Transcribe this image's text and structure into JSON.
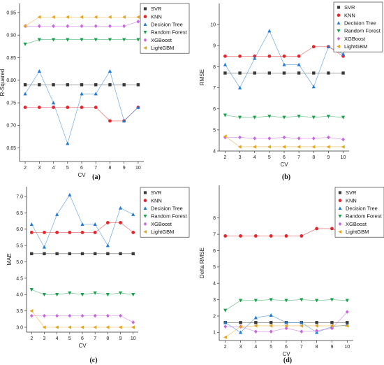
{
  "figure": {
    "captions": [
      "(a)",
      "(b)",
      "(c)",
      "(d)"
    ]
  },
  "series_styles": [
    {
      "name": "SVR",
      "color": "#3a3a3a",
      "marker": "square"
    },
    {
      "name": "KNN",
      "color": "#e8242a",
      "marker": "circle"
    },
    {
      "name": "Decision Tree",
      "color": "#1f7bd6",
      "marker": "triangle-up"
    },
    {
      "name": "Random Forest",
      "color": "#18a04a",
      "marker": "triangle-down"
    },
    {
      "name": "XGBoost",
      "color": "#c966e0",
      "marker": "diamond"
    },
    {
      "name": "LightGBM",
      "color": "#e8a31a",
      "marker": "triangle-left"
    }
  ],
  "chart_data": [
    {
      "type": "line",
      "caption": "(a)",
      "xlabel": "CV",
      "ylabel": "R-Squared",
      "x": [
        2,
        3,
        4,
        5,
        6,
        7,
        8,
        9,
        10
      ],
      "ylim": [
        0.62,
        0.97
      ],
      "yticks": [
        0.65,
        0.7,
        0.75,
        0.8,
        0.85,
        0.9,
        0.95
      ],
      "ytick_labels": [
        "0.65",
        "0.70",
        "0.75",
        "0.80",
        "0.85",
        "0.90",
        "0.95"
      ],
      "legend": "top-right",
      "series": [
        {
          "name": "SVR",
          "values": [
            0.79,
            0.79,
            0.79,
            0.79,
            0.79,
            0.79,
            0.79,
            0.79,
            0.79
          ]
        },
        {
          "name": "KNN",
          "values": [
            0.74,
            0.74,
            0.74,
            0.74,
            0.74,
            0.74,
            0.71,
            0.71,
            0.74
          ]
        },
        {
          "name": "Decision Tree",
          "values": [
            0.77,
            0.82,
            0.75,
            0.66,
            0.77,
            0.77,
            0.82,
            0.71,
            0.74
          ]
        },
        {
          "name": "Random Forest",
          "values": [
            0.88,
            0.89,
            0.89,
            0.89,
            0.89,
            0.89,
            0.89,
            0.89,
            0.89
          ]
        },
        {
          "name": "XGBoost",
          "values": [
            0.92,
            0.92,
            0.92,
            0.92,
            0.92,
            0.92,
            0.92,
            0.92,
            0.93
          ]
        },
        {
          "name": "LightGBM",
          "values": [
            0.92,
            0.94,
            0.94,
            0.94,
            0.94,
            0.94,
            0.94,
            0.94,
            0.94
          ]
        }
      ]
    },
    {
      "type": "line",
      "caption": "(b)",
      "xlabel": "CV",
      "ylabel": "RMSE",
      "x": [
        2,
        3,
        4,
        5,
        6,
        7,
        8,
        9,
        10
      ],
      "ylim": [
        4,
        11
      ],
      "yticks": [
        4,
        5,
        6,
        7,
        8,
        9,
        10
      ],
      "ytick_labels": [
        "4",
        "5",
        "6",
        "7",
        "8",
        "9",
        "10"
      ],
      "legend": "top-right",
      "series": [
        {
          "name": "SVR",
          "values": [
            7.7,
            7.7,
            7.7,
            7.7,
            7.7,
            7.7,
            7.7,
            7.7,
            7.7
          ]
        },
        {
          "name": "KNN",
          "values": [
            8.5,
            8.5,
            8.5,
            8.5,
            8.5,
            8.5,
            8.95,
            8.95,
            8.5
          ]
        },
        {
          "name": "Decision Tree",
          "values": [
            8.1,
            7.0,
            8.4,
            9.7,
            8.1,
            8.1,
            7.05,
            8.95,
            8.6
          ]
        },
        {
          "name": "Random Forest",
          "values": [
            5.7,
            5.6,
            5.6,
            5.65,
            5.6,
            5.65,
            5.6,
            5.65,
            5.6
          ]
        },
        {
          "name": "XGBoost",
          "values": [
            4.65,
            4.65,
            4.6,
            4.6,
            4.65,
            4.6,
            4.6,
            4.65,
            4.55
          ]
        },
        {
          "name": "LightGBM",
          "values": [
            4.7,
            4.2,
            4.2,
            4.2,
            4.2,
            4.2,
            4.2,
            4.2,
            4.2
          ]
        }
      ]
    },
    {
      "type": "line",
      "caption": "(c)",
      "xlabel": "CV",
      "ylabel": "MAE",
      "x": [
        2,
        3,
        4,
        5,
        6,
        7,
        8,
        9,
        10
      ],
      "ylim": [
        2.85,
        7.3
      ],
      "yticks": [
        3.0,
        3.5,
        4.0,
        4.5,
        5.0,
        5.5,
        6.0,
        6.5,
        7.0
      ],
      "ytick_labels": [
        "3.0",
        "3.5",
        "4.0",
        "4.5",
        "5.0",
        "5.5",
        "6.0",
        "6.5",
        "7.0"
      ],
      "legend": "top-right",
      "series": [
        {
          "name": "SVR",
          "values": [
            5.25,
            5.25,
            5.25,
            5.25,
            5.25,
            5.25,
            5.25,
            5.25,
            5.25
          ]
        },
        {
          "name": "KNN",
          "values": [
            5.9,
            5.9,
            5.9,
            5.9,
            5.9,
            5.9,
            6.2,
            6.2,
            5.9
          ]
        },
        {
          "name": "Decision Tree",
          "values": [
            6.15,
            5.45,
            6.45,
            7.05,
            6.15,
            6.15,
            5.5,
            6.65,
            6.45
          ]
        },
        {
          "name": "Random Forest",
          "values": [
            4.15,
            4.0,
            4.0,
            4.05,
            4.0,
            4.05,
            4.0,
            4.05,
            4.0
          ]
        },
        {
          "name": "XGBoost",
          "values": [
            3.35,
            3.35,
            3.35,
            3.35,
            3.35,
            3.35,
            3.35,
            3.35,
            3.15
          ]
        },
        {
          "name": "LightGBM",
          "values": [
            3.5,
            3.0,
            3.0,
            3.0,
            3.0,
            3.0,
            3.0,
            3.0,
            3.0
          ]
        }
      ]
    },
    {
      "type": "line",
      "caption": "(d)",
      "xlabel": "CV",
      "ylabel": "Delta RMSE",
      "x": [
        2,
        3,
        4,
        5,
        6,
        7,
        8,
        9,
        10
      ],
      "ylim": [
        0.5,
        10
      ],
      "yticks": [
        1,
        2,
        3,
        4,
        5,
        6,
        7,
        8
      ],
      "ytick_labels": [
        "1",
        "2",
        "3",
        "4",
        "5",
        "6",
        "7",
        "8"
      ],
      "legend": "top-right",
      "series": [
        {
          "name": "SVR",
          "values": [
            1.6,
            1.6,
            1.6,
            1.6,
            1.6,
            1.6,
            1.6,
            1.6,
            1.6
          ]
        },
        {
          "name": "KNN",
          "values": [
            6.9,
            6.9,
            6.9,
            6.9,
            6.9,
            6.9,
            7.35,
            7.35,
            6.9
          ]
        },
        {
          "name": "Decision Tree",
          "values": [
            1.6,
            1.0,
            1.9,
            2.05,
            1.6,
            1.6,
            1.0,
            1.35,
            1.45
          ]
        },
        {
          "name": "Random Forest",
          "values": [
            2.35,
            2.95,
            2.95,
            3.0,
            2.95,
            3.0,
            2.95,
            3.0,
            2.95
          ]
        },
        {
          "name": "XGBoost",
          "values": [
            1.35,
            1.35,
            1.05,
            1.05,
            1.25,
            1.05,
            1.1,
            1.25,
            2.25
          ]
        },
        {
          "name": "LightGBM",
          "values": [
            0.7,
            1.35,
            1.4,
            1.4,
            1.4,
            1.4,
            1.4,
            1.4,
            1.4
          ]
        }
      ]
    }
  ]
}
